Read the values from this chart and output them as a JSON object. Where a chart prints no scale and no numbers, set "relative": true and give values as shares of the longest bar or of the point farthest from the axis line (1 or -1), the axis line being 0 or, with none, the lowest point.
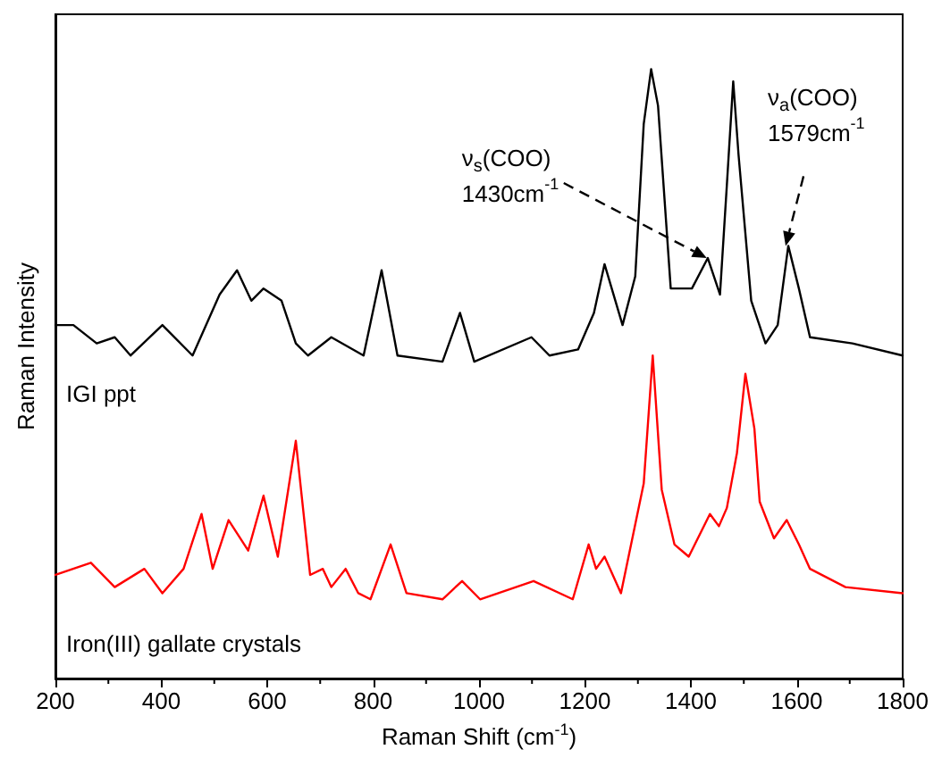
{
  "chart_data": {
    "type": "line",
    "relative": true,
    "xlabel": "Raman Shift (cm$^{-1}$)",
    "ylabel": "Raman Intensity",
    "xlim": [
      200,
      1800
    ],
    "xticks": [
      200,
      400,
      600,
      800,
      1000,
      1200,
      1400,
      1600,
      1800
    ],
    "marker": "none",
    "grid": false,
    "annotations": [
      {
        "text": "ν$_{s}$(COO)\n1430cm$^{-1}$",
        "x": 1430,
        "y": 0.69
      },
      {
        "text": "ν$_{a}$(COO)\n1579cm$^{-1}$",
        "x": 1579,
        "y": 0.71
      }
    ],
    "series": [
      {
        "name": "IGI ppt",
        "color": "#000000",
        "x": [
          200,
          234,
          278,
          312,
          342,
          402,
          459,
          510,
          543,
          570,
          593,
          627,
          654,
          677,
          721,
          782,
          816,
          846,
          931,
          964,
          991,
          1099,
          1133,
          1187,
          1217,
          1237,
          1271,
          1295,
          1311,
          1325,
          1338,
          1362,
          1402,
          1432,
          1455,
          1468,
          1480,
          1490,
          1514,
          1541,
          1564,
          1584,
          1604,
          1625,
          1705,
          1800
        ],
        "values": [
          0.58,
          0.58,
          0.55,
          0.56,
          0.53,
          0.58,
          0.53,
          0.63,
          0.67,
          0.62,
          0.64,
          0.62,
          0.55,
          0.53,
          0.56,
          0.53,
          0.67,
          0.53,
          0.52,
          0.6,
          0.52,
          0.56,
          0.53,
          0.54,
          0.6,
          0.68,
          0.58,
          0.66,
          0.91,
          1.0,
          0.94,
          0.64,
          0.64,
          0.69,
          0.63,
          0.81,
          0.98,
          0.86,
          0.62,
          0.55,
          0.58,
          0.71,
          0.64,
          0.56,
          0.55,
          0.53
        ]
      },
      {
        "name": "Iron(III) gallate crystals",
        "color": "#ff0000",
        "x": [
          200,
          267,
          312,
          368,
          402,
          442,
          476,
          497,
          527,
          564,
          593,
          620,
          654,
          681,
          705,
          721,
          748,
          772,
          795,
          833,
          863,
          931,
          968,
          1002,
          1103,
          1177,
          1207,
          1221,
          1237,
          1268,
          1311,
          1328,
          1345,
          1369,
          1396,
          1436,
          1453,
          1468,
          1487,
          1503,
          1520,
          1530,
          1557,
          1581,
          1604,
          1625,
          1692,
          1800
        ],
        "values": [
          0.17,
          0.19,
          0.15,
          0.18,
          0.14,
          0.18,
          0.27,
          0.18,
          0.26,
          0.21,
          0.3,
          0.2,
          0.39,
          0.17,
          0.18,
          0.15,
          0.18,
          0.14,
          0.13,
          0.22,
          0.14,
          0.13,
          0.16,
          0.13,
          0.16,
          0.13,
          0.22,
          0.18,
          0.2,
          0.14,
          0.32,
          0.53,
          0.31,
          0.22,
          0.2,
          0.27,
          0.25,
          0.28,
          0.37,
          0.5,
          0.41,
          0.29,
          0.23,
          0.26,
          0.22,
          0.18,
          0.15,
          0.14
        ]
      }
    ]
  }
}
